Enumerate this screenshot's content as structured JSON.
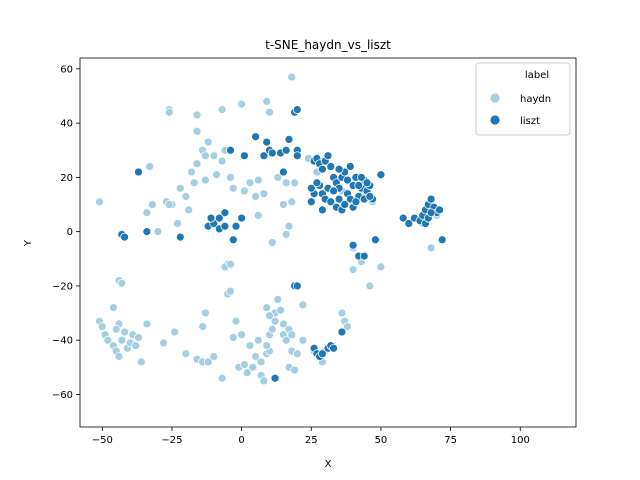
{
  "chart_data": {
    "type": "scatter",
    "title": "t-SNE_haydn_vs_liszt",
    "xlabel": "X",
    "ylabel": "Y",
    "xlim": [
      -58,
      120
    ],
    "ylim": [
      -72,
      64
    ],
    "xticks": [
      -50,
      -25,
      0,
      25,
      50,
      75,
      100
    ],
    "yticks": [
      -60,
      -40,
      -20,
      0,
      20,
      40,
      60
    ],
    "grid": false,
    "legend": {
      "title": "label",
      "placement": "top-right"
    },
    "series": [
      {
        "name": "haydn",
        "color": "#a6cee3",
        "points": [
          [
            -51,
            11
          ],
          [
            -33,
            24
          ],
          [
            -26,
            45
          ],
          [
            -26,
            44
          ],
          [
            -16,
            43
          ],
          [
            -16,
            37
          ],
          [
            -14,
            30
          ],
          [
            -12,
            33
          ],
          [
            -13,
            28
          ],
          [
            -16,
            25
          ],
          [
            -10,
            28
          ],
          [
            -7,
            26
          ],
          [
            -9,
            21
          ],
          [
            -6,
            30
          ],
          [
            -7,
            45
          ],
          [
            0,
            47
          ],
          [
            9,
            48
          ],
          [
            10,
            44
          ],
          [
            18,
            57
          ],
          [
            -4,
            20
          ],
          [
            -3,
            16
          ],
          [
            1,
            15
          ],
          [
            3,
            18
          ],
          [
            6,
            19
          ],
          [
            5,
            13
          ],
          [
            8,
            14
          ],
          [
            13,
            20
          ],
          [
            16,
            18
          ],
          [
            18,
            11
          ],
          [
            15,
            10
          ],
          [
            19,
            18
          ],
          [
            -13,
            19
          ],
          [
            -17,
            18
          ],
          [
            -20,
            13
          ],
          [
            -19,
            8
          ],
          [
            -23,
            3
          ],
          [
            -25,
            10
          ],
          [
            -27,
            11
          ],
          [
            -32,
            10
          ],
          [
            -34,
            7
          ],
          [
            -26,
            10
          ],
          [
            -22,
            16
          ],
          [
            11,
            -4
          ],
          [
            17,
            2
          ],
          [
            16,
            -1
          ],
          [
            6,
            6
          ],
          [
            -5,
            -12
          ],
          [
            -6,
            -13
          ],
          [
            -4,
            -12
          ],
          [
            -5,
            -23
          ],
          [
            -4,
            -22
          ],
          [
            -44,
            -18
          ],
          [
            -43,
            -19
          ],
          [
            -46,
            -28
          ],
          [
            -51,
            -33
          ],
          [
            -50,
            -35
          ],
          [
            -49,
            -38
          ],
          [
            -48,
            -40
          ],
          [
            -46,
            -42
          ],
          [
            -45,
            -44
          ],
          [
            -44,
            -46
          ],
          [
            -43,
            -40
          ],
          [
            -42,
            -37
          ],
          [
            -41,
            -43
          ],
          [
            -40,
            -41
          ],
          [
            -39,
            -38
          ],
          [
            -38,
            -42
          ],
          [
            -37,
            -39
          ],
          [
            -36,
            -48
          ],
          [
            -34,
            -34
          ],
          [
            -44,
            -34
          ],
          [
            -45,
            -36
          ],
          [
            -28,
            -41
          ],
          [
            -24,
            -37
          ],
          [
            -20,
            -45
          ],
          [
            -16,
            -47
          ],
          [
            -14,
            -48
          ],
          [
            -12,
            -48
          ],
          [
            -10,
            -46
          ],
          [
            -7,
            -54
          ],
          [
            -3,
            -39
          ],
          [
            -1,
            -50
          ],
          [
            1,
            -49
          ],
          [
            2,
            -52
          ],
          [
            4,
            -50
          ],
          [
            5,
            -46
          ],
          [
            7,
            -48
          ],
          [
            7,
            -53
          ],
          [
            8,
            -55
          ],
          [
            9,
            -45
          ],
          [
            10,
            -44
          ],
          [
            9,
            -42
          ],
          [
            10,
            -38
          ],
          [
            11,
            -36
          ],
          [
            12,
            -33
          ],
          [
            12,
            -30
          ],
          [
            13,
            -25
          ],
          [
            14,
            -29
          ],
          [
            15,
            -34
          ],
          [
            15,
            -38
          ],
          [
            16,
            -40
          ],
          [
            17,
            -36
          ],
          [
            18,
            -38
          ],
          [
            17,
            -50
          ],
          [
            19,
            -51
          ],
          [
            18,
            -44
          ],
          [
            20,
            -45
          ],
          [
            22,
            -27
          ],
          [
            22,
            -40
          ],
          [
            10,
            -31
          ],
          [
            9,
            -28
          ],
          [
            6,
            -40
          ],
          [
            3,
            -42
          ],
          [
            0,
            -38
          ],
          [
            -2,
            -33
          ],
          [
            -13,
            -30
          ],
          [
            -14,
            -35
          ],
          [
            28,
            -45
          ],
          [
            26,
            -44
          ],
          [
            29,
            -48
          ],
          [
            30,
            -44
          ],
          [
            36,
            -30
          ],
          [
            37,
            -33
          ],
          [
            38,
            -35
          ],
          [
            40,
            -6
          ],
          [
            40,
            -14
          ],
          [
            43,
            -11
          ],
          [
            46,
            -20
          ],
          [
            50,
            -13
          ],
          [
            68,
            -6
          ],
          [
            65,
            3
          ],
          [
            67,
            9
          ],
          [
            70,
            6
          ],
          [
            36,
            15
          ],
          [
            40,
            18
          ],
          [
            44,
            14
          ],
          [
            27,
            22
          ],
          [
            29,
            26
          ],
          [
            24,
            27
          ],
          [
            47,
            11
          ],
          [
            -30,
            0
          ],
          [
            -18,
            22
          ]
        ]
      },
      {
        "name": "liszt",
        "color": "#1f78b4",
        "points": [
          [
            -37,
            22
          ],
          [
            -43,
            -1
          ],
          [
            -42,
            -2
          ],
          [
            -34,
            0
          ],
          [
            -22,
            -2
          ],
          [
            -12,
            2
          ],
          [
            -10,
            3
          ],
          [
            -8,
            1
          ],
          [
            -6,
            2
          ],
          [
            -3,
            -3
          ],
          [
            -2,
            2
          ],
          [
            0,
            5
          ],
          [
            -11,
            5
          ],
          [
            -6,
            7
          ],
          [
            -8,
            5
          ],
          [
            -4,
            30
          ],
          [
            1,
            28
          ],
          [
            5,
            35
          ],
          [
            9,
            33
          ],
          [
            8,
            28
          ],
          [
            10,
            30
          ],
          [
            11,
            29
          ],
          [
            14,
            29
          ],
          [
            16,
            30
          ],
          [
            20,
            30
          ],
          [
            19,
            44
          ],
          [
            20,
            45
          ],
          [
            17,
            34
          ],
          [
            25,
            11
          ],
          [
            26,
            26
          ],
          [
            27,
            27
          ],
          [
            28,
            25
          ],
          [
            29,
            23
          ],
          [
            30,
            26
          ],
          [
            31,
            28
          ],
          [
            32,
            24
          ],
          [
            33,
            20
          ],
          [
            34,
            18
          ],
          [
            35,
            16
          ],
          [
            36,
            20
          ],
          [
            37,
            22
          ],
          [
            38,
            19
          ],
          [
            39,
            24
          ],
          [
            40,
            17
          ],
          [
            41,
            20
          ],
          [
            42,
            13
          ],
          [
            43,
            16
          ],
          [
            44,
            19
          ],
          [
            45,
            15
          ],
          [
            46,
            17
          ],
          [
            47,
            12
          ],
          [
            28,
            17
          ],
          [
            29,
            14
          ],
          [
            30,
            12
          ],
          [
            31,
            16
          ],
          [
            32,
            11
          ],
          [
            33,
            15
          ],
          [
            34,
            9
          ],
          [
            35,
            12
          ],
          [
            36,
            8
          ],
          [
            37,
            10
          ],
          [
            38,
            14
          ],
          [
            39,
            12
          ],
          [
            40,
            9
          ],
          [
            41,
            11
          ],
          [
            29,
            8
          ],
          [
            27,
            18
          ],
          [
            26,
            14
          ],
          [
            42,
            17
          ],
          [
            43,
            20
          ],
          [
            44,
            12
          ],
          [
            45,
            18
          ],
          [
            46,
            13
          ],
          [
            50,
            21
          ],
          [
            58,
            5
          ],
          [
            60,
            3
          ],
          [
            62,
            5
          ],
          [
            64,
            4
          ],
          [
            65,
            6
          ],
          [
            66,
            8
          ],
          [
            67,
            10
          ],
          [
            68,
            12
          ],
          [
            69,
            9
          ],
          [
            70,
            7
          ],
          [
            71,
            8
          ],
          [
            66,
            3
          ],
          [
            67,
            5
          ],
          [
            68,
            7
          ],
          [
            72,
            -3
          ],
          [
            48,
            -3
          ],
          [
            40,
            -5
          ],
          [
            42,
            -9
          ],
          [
            44,
            -9
          ],
          [
            19,
            -20
          ],
          [
            20,
            -20
          ],
          [
            12,
            -54
          ],
          [
            26,
            -43
          ],
          [
            27,
            -45
          ],
          [
            28,
            -46
          ],
          [
            29,
            -45
          ],
          [
            31,
            -43
          ],
          [
            32,
            -42
          ],
          [
            33,
            -43
          ],
          [
            36,
            -37
          ],
          [
            20,
            28
          ],
          [
            15,
            22
          ],
          [
            35,
            23
          ],
          [
            25,
            16
          ]
        ]
      }
    ]
  }
}
